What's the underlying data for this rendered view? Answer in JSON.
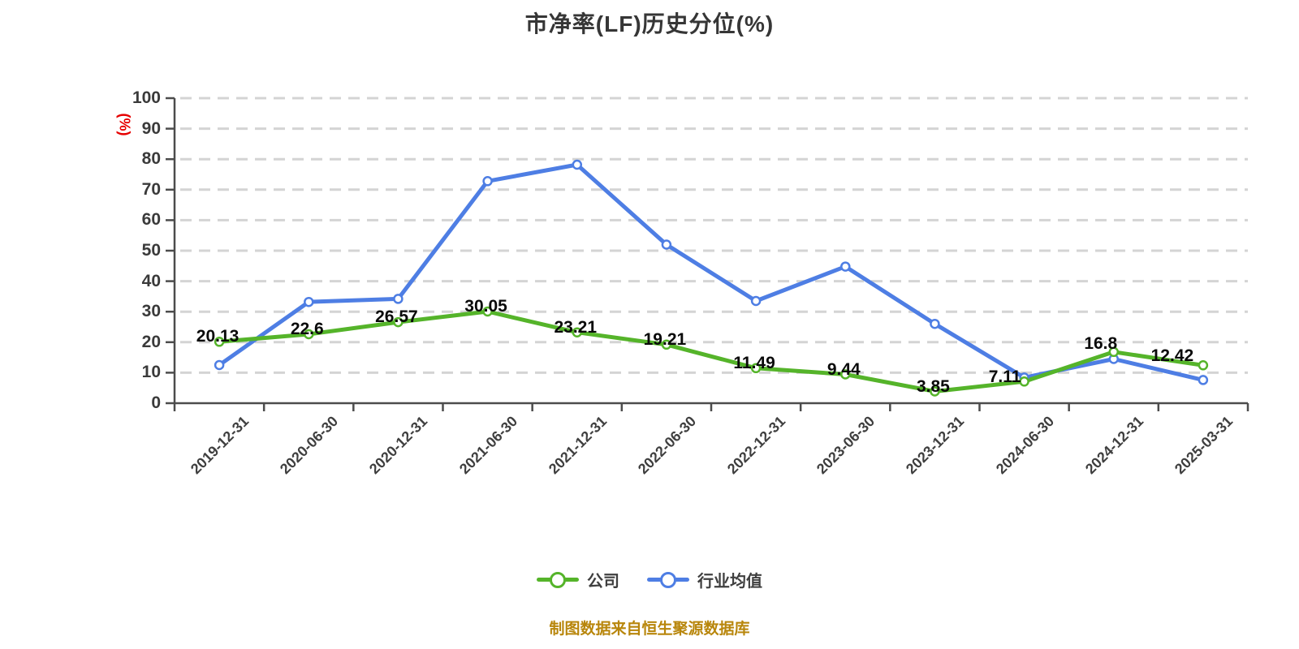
{
  "header": {
    "title": "市净率(LF)历史分位(%)"
  },
  "axis": {
    "unit_label": "(%)",
    "unit_color": "#e60000"
  },
  "legend": {
    "items": [
      {
        "label": "公司",
        "color": "#55b42a"
      },
      {
        "label": "行业均值",
        "color": "#4e7ee4"
      }
    ]
  },
  "footer": {
    "source_note": "制图数据来自恒生聚源数据库",
    "color": "#b8860b"
  },
  "colors": {
    "company_line": "#55b42a",
    "industry_line": "#4e7ee4",
    "grid": "#d4d4d4",
    "axis": "#4c4c4c",
    "title_text": "#363636",
    "data_label": "#0a0a0a",
    "source_text": "#b8860b"
  },
  "chart_data": {
    "type": "line",
    "title": "市净率(LF)历史分位(%)",
    "categories": [
      "2019-12-31",
      "2020-06-30",
      "2020-12-31",
      "2021-06-30",
      "2021-12-31",
      "2022-06-30",
      "2022-12-31",
      "2023-06-30",
      "2023-12-31",
      "2024-06-30",
      "2024-12-31",
      "2025-03-31"
    ],
    "series": [
      {
        "name": "公司",
        "color": "#55b42a",
        "values": [
          20.13,
          22.6,
          26.57,
          30.05,
          23.21,
          19.21,
          11.49,
          9.44,
          3.85,
          7.11,
          16.8,
          12.42
        ],
        "point_labels": [
          "20.13",
          "22.6",
          "26.57",
          "30.05",
          "23.21",
          "19.21",
          "11.49",
          "9.44",
          "3.85",
          "7.11",
          "16.8",
          "12.42"
        ]
      },
      {
        "name": "行业均值",
        "color": "#4e7ee4",
        "values": [
          12.5,
          33.2,
          34.2,
          72.8,
          78.2,
          52.0,
          33.5,
          44.8,
          26.0,
          8.4,
          14.5,
          7.6
        ],
        "point_labels": []
      }
    ],
    "ylabel": "(%)",
    "ylim": [
      0,
      100
    ],
    "y_tick_step": 10,
    "grid": {
      "horizontal_dashed": true,
      "color": "#d4d4d4"
    },
    "legend_position": "bottom"
  }
}
